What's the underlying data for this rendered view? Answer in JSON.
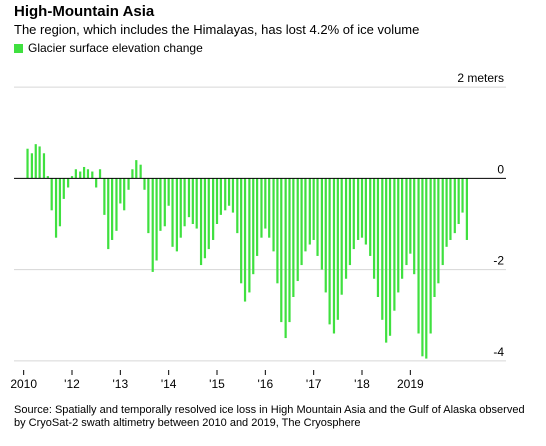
{
  "title": "High-Mountain Asia",
  "subtitle": "The region, which includes the Himalayas, has lost 4.2% of ice volume",
  "source": "Source: Spatially and temporally resolved ice loss in High Mountain Asia and the Gulf of Alaska observed by CryoSat-2 swath altimetry between 2010 and 2019, The Cryosphere",
  "colors": {
    "bar": "#3fe03f",
    "grid": "#d6d6d6",
    "zero": "#000000"
  },
  "chart_data": {
    "type": "bar",
    "title": "High-Mountain Asia",
    "legend": [
      "Glacier surface elevation change"
    ],
    "y_unit_label": "2 meters",
    "ylim": [
      -4.2,
      2.2
    ],
    "yticks": [
      {
        "value": 2,
        "label": "2 meters"
      },
      {
        "value": 0,
        "label": "0"
      },
      {
        "value": -2,
        "label": "-2"
      },
      {
        "value": -4,
        "label": "-4"
      }
    ],
    "xlim": [
      2009.8,
      2019.4
    ],
    "xticks": [
      {
        "value": 2010,
        "label": "2010"
      },
      {
        "value": 2011,
        "label": "'12"
      },
      {
        "value": 2012,
        "label": "'13"
      },
      {
        "value": 2013,
        "label": "'14"
      },
      {
        "value": 2014,
        "label": "'15"
      },
      {
        "value": 2015,
        "label": "'16"
      },
      {
        "value": 2016,
        "label": "'17"
      },
      {
        "value": 2017,
        "label": "'18"
      },
      {
        "value": 2018,
        "label": "2019"
      }
    ],
    "series": [
      {
        "name": "Glacier surface elevation change",
        "x": [
          2010.08,
          2010.17,
          2010.25,
          2010.33,
          2010.42,
          2010.5,
          2010.58,
          2010.67,
          2010.75,
          2010.83,
          2010.92,
          2011.0,
          2011.08,
          2011.17,
          2011.25,
          2011.33,
          2011.42,
          2011.5,
          2011.58,
          2011.67,
          2011.75,
          2011.83,
          2011.92,
          2012.0,
          2012.08,
          2012.17,
          2012.25,
          2012.33,
          2012.42,
          2012.5,
          2012.58,
          2012.67,
          2012.75,
          2012.83,
          2012.92,
          2013.0,
          2013.08,
          2013.17,
          2013.25,
          2013.33,
          2013.42,
          2013.5,
          2013.58,
          2013.67,
          2013.75,
          2013.83,
          2013.92,
          2014.0,
          2014.08,
          2014.17,
          2014.25,
          2014.33,
          2014.42,
          2014.5,
          2014.58,
          2014.67,
          2014.75,
          2014.83,
          2014.92,
          2015.0,
          2015.08,
          2015.17,
          2015.25,
          2015.33,
          2015.42,
          2015.5,
          2015.58,
          2015.67,
          2015.75,
          2015.83,
          2015.92,
          2016.0,
          2016.08,
          2016.17,
          2016.25,
          2016.33,
          2016.42,
          2016.5,
          2016.58,
          2016.67,
          2016.75,
          2016.83,
          2016.92,
          2017.0,
          2017.08,
          2017.17,
          2017.25,
          2017.33,
          2017.42,
          2017.5,
          2017.58,
          2017.67,
          2017.75,
          2017.83,
          2017.92,
          2018.0,
          2018.08,
          2018.17,
          2018.25,
          2018.33,
          2018.42,
          2018.5,
          2018.58,
          2018.67,
          2018.75,
          2018.83,
          2018.92,
          2019.0,
          2019.08,
          2019.17
        ],
        "values": [
          0.65,
          0.55,
          0.75,
          0.7,
          0.55,
          0.05,
          -0.7,
          -1.3,
          -1.05,
          -0.45,
          -0.2,
          0.05,
          0.2,
          0.15,
          0.25,
          0.2,
          0.15,
          -0.2,
          0.2,
          -0.8,
          -1.55,
          -1.35,
          -1.15,
          -0.55,
          -0.7,
          -0.25,
          0.2,
          0.4,
          0.3,
          -0.25,
          -1.2,
          -2.05,
          -1.8,
          -1.15,
          -1.05,
          -0.6,
          -1.5,
          -1.6,
          -1.3,
          -1.05,
          -0.85,
          -1.0,
          -1.1,
          -1.9,
          -1.75,
          -1.55,
          -1.35,
          -1.0,
          -0.8,
          -0.7,
          -0.6,
          -0.75,
          -1.2,
          -2.3,
          -2.7,
          -2.5,
          -2.1,
          -1.7,
          -1.3,
          -1.1,
          -1.3,
          -1.6,
          -2.3,
          -3.15,
          -3.5,
          -3.15,
          -2.6,
          -2.25,
          -1.9,
          -1.6,
          -1.45,
          -1.35,
          -1.7,
          -2.0,
          -2.5,
          -3.2,
          -3.4,
          -3.1,
          -2.55,
          -2.2,
          -1.9,
          -1.55,
          -1.35,
          -1.3,
          -1.45,
          -1.7,
          -2.2,
          -2.6,
          -3.1,
          -3.6,
          -3.45,
          -2.9,
          -2.5,
          -2.2,
          -1.9,
          -1.65,
          -2.1,
          -3.4,
          -3.9,
          -3.95,
          -3.4,
          -2.6,
          -2.3,
          -1.9,
          -1.5,
          -1.35,
          -1.2,
          -1.0,
          -0.75,
          -1.35
        ]
      }
    ]
  }
}
